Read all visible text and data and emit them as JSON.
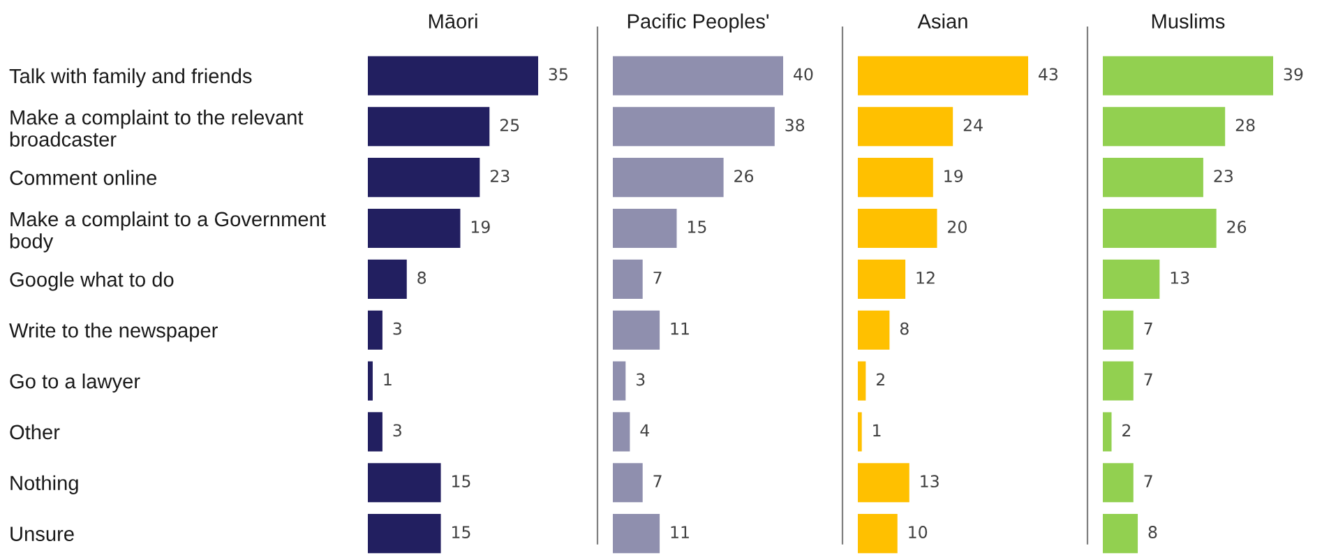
{
  "chart_data": [
    {
      "type": "bar",
      "orientation": "horizontal",
      "title": "Māori",
      "categories": [
        "Talk with family and friends",
        "Make a complaint to the relevant\nbroadcaster",
        "Comment online",
        "Make a complaint to a Government\nbody",
        "Google what to do",
        "Write to the newspaper",
        "Go to a lawyer",
        "Other",
        "Nothing",
        "Unsure"
      ],
      "values": [
        35,
        25,
        23,
        19,
        8,
        3,
        1,
        3,
        15,
        15
      ],
      "color": "#221f60",
      "data_labels": true,
      "tick_labels": "y"
    },
    {
      "type": "bar",
      "orientation": "horizontal",
      "title": "Pacific Peoples'",
      "categories": [
        null,
        null,
        null,
        null,
        null,
        null,
        null,
        null,
        null,
        null
      ],
      "values": [
        40,
        38,
        26,
        15,
        7,
        11,
        3,
        4,
        7,
        11
      ],
      "color": "#8f8fae",
      "data_labels": true,
      "tick_labels": false
    },
    {
      "type": "bar",
      "orientation": "horizontal",
      "title": "Asian",
      "categories": [
        null,
        null,
        null,
        null,
        null,
        null,
        null,
        null,
        null,
        null
      ],
      "values": [
        43,
        24,
        19,
        20,
        12,
        8,
        2,
        1,
        13,
        10
      ],
      "color": "#ffc000",
      "data_labels": true,
      "tick_labels": false
    },
    {
      "type": "bar",
      "orientation": "horizontal",
      "title": "Muslims",
      "categories": [
        null,
        null,
        null,
        null,
        null,
        null,
        null,
        null,
        null,
        null
      ],
      "values": [
        39,
        28,
        23,
        26,
        13,
        7,
        7,
        2,
        7,
        8
      ],
      "color": "#92d050",
      "data_labels": true,
      "tick_labels": false
    }
  ]
}
